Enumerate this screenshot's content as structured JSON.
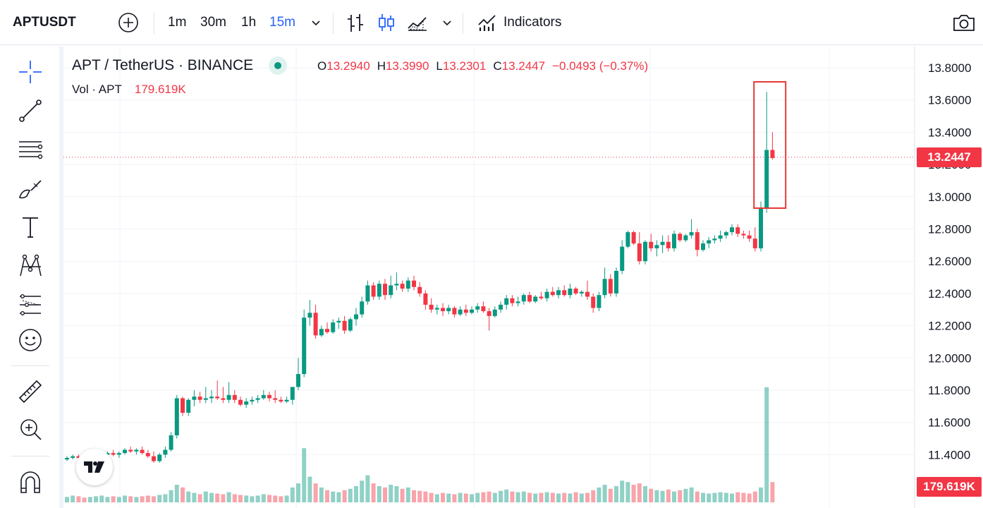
{
  "toolbar": {
    "symbol": "APTUSDT",
    "intervals": [
      "1m",
      "30m",
      "1h",
      "15m"
    ],
    "selected_interval": "15m",
    "indicators_label": "Indicators"
  },
  "legend": {
    "pair": "APT / TetherUS · BINANCE",
    "o_label": "O",
    "o_value": "13.2940",
    "h_label": "H",
    "h_value": "13.3990",
    "l_label": "L",
    "l_value": "13.2301",
    "c_label": "C",
    "c_value": "13.2447",
    "change": "−0.0493 (−0.37%)",
    "vol_label": "Vol · APT",
    "vol_value": "179.619K"
  },
  "price_tag": "13.2447",
  "volume_tag": "179.619K",
  "colors": {
    "up": "#089981",
    "down": "#f23645",
    "accent": "#2962ff",
    "highlight": "#e53935"
  },
  "icons": [
    "plus-circle-icon",
    "chevron-down-icon",
    "bar-chart-icon",
    "candles-icon",
    "area-chart-icon",
    "indicators-icon",
    "camera-icon",
    "crosshair-icon",
    "trendline-icon",
    "fib-icon",
    "brush-icon",
    "text-icon",
    "pattern-icon",
    "forecast-icon",
    "emoji-icon",
    "ruler-icon",
    "zoom-icon",
    "magnet-icon",
    "tradingview-logo-icon"
  ],
  "chart_data": {
    "type": "candlestick",
    "y_ticks": [
      "13.8000",
      "13.6000",
      "13.4000",
      "13.2000",
      "13.0000",
      "12.8000",
      "12.6000",
      "12.4000",
      "12.2000",
      "12.0000",
      "11.8000",
      "11.6000",
      "11.4000"
    ],
    "ylim": [
      11.2,
      13.9
    ],
    "last_price": 13.2447,
    "candles": [
      [
        11.37,
        11.39,
        11.36,
        11.38
      ],
      [
        11.38,
        11.4,
        11.37,
        11.39
      ],
      [
        11.39,
        11.4,
        11.37,
        11.38
      ],
      [
        11.38,
        11.39,
        11.36,
        11.37
      ],
      [
        11.37,
        11.38,
        11.35,
        11.37
      ],
      [
        11.37,
        11.4,
        11.36,
        11.39
      ],
      [
        11.39,
        11.41,
        11.38,
        11.4
      ],
      [
        11.4,
        11.42,
        11.39,
        11.41
      ],
      [
        11.41,
        11.43,
        11.39,
        11.4
      ],
      [
        11.4,
        11.42,
        11.38,
        11.41
      ],
      [
        11.41,
        11.44,
        11.4,
        11.43
      ],
      [
        11.43,
        11.45,
        11.41,
        11.42
      ],
      [
        11.42,
        11.44,
        11.4,
        11.43
      ],
      [
        11.43,
        11.45,
        11.4,
        11.41
      ],
      [
        11.41,
        11.43,
        11.38,
        11.39
      ],
      [
        11.39,
        11.42,
        11.35,
        11.36
      ],
      [
        11.36,
        11.41,
        11.35,
        11.4
      ],
      [
        11.4,
        11.45,
        11.38,
        11.43
      ],
      [
        11.43,
        11.54,
        11.42,
        11.52
      ],
      [
        11.52,
        11.77,
        11.5,
        11.75
      ],
      [
        11.75,
        11.76,
        11.64,
        11.66
      ],
      [
        11.66,
        11.75,
        11.64,
        11.74
      ],
      [
        11.74,
        11.8,
        11.7,
        11.76
      ],
      [
        11.76,
        11.79,
        11.72,
        11.74
      ],
      [
        11.74,
        11.82,
        11.72,
        11.75
      ],
      [
        11.75,
        11.8,
        11.72,
        11.76
      ],
      [
        11.76,
        11.86,
        11.74,
        11.75
      ],
      [
        11.75,
        11.82,
        11.72,
        11.74
      ],
      [
        11.74,
        11.85,
        11.72,
        11.77
      ],
      [
        11.77,
        11.8,
        11.72,
        11.74
      ],
      [
        11.74,
        11.76,
        11.7,
        11.71
      ],
      [
        11.71,
        11.75,
        11.69,
        11.73
      ],
      [
        11.73,
        11.76,
        11.71,
        11.74
      ],
      [
        11.74,
        11.77,
        11.72,
        11.75
      ],
      [
        11.75,
        11.8,
        11.74,
        11.77
      ],
      [
        11.77,
        11.79,
        11.73,
        11.75
      ],
      [
        11.75,
        11.8,
        11.72,
        11.74
      ],
      [
        11.74,
        11.76,
        11.72,
        11.73
      ],
      [
        11.73,
        11.76,
        11.72,
        11.74
      ],
      [
        11.74,
        11.8,
        11.71,
        11.82
      ],
      [
        11.82,
        12.0,
        11.8,
        11.9
      ],
      [
        11.9,
        12.3,
        11.88,
        12.25
      ],
      [
        12.25,
        12.36,
        12.2,
        12.28
      ],
      [
        12.28,
        12.33,
        12.12,
        12.14
      ],
      [
        12.14,
        12.2,
        12.13,
        12.18
      ],
      [
        12.18,
        12.22,
        12.15,
        12.16
      ],
      [
        12.16,
        12.24,
        12.15,
        12.22
      ],
      [
        12.22,
        12.25,
        12.18,
        12.23
      ],
      [
        12.23,
        12.26,
        12.15,
        12.17
      ],
      [
        12.17,
        12.25,
        12.16,
        12.24
      ],
      [
        12.24,
        12.31,
        12.2,
        12.27
      ],
      [
        12.27,
        12.38,
        12.25,
        12.35
      ],
      [
        12.35,
        12.48,
        12.33,
        12.45
      ],
      [
        12.45,
        12.47,
        12.36,
        12.38
      ],
      [
        12.38,
        12.48,
        12.36,
        12.46
      ],
      [
        12.46,
        12.49,
        12.36,
        12.39
      ],
      [
        12.39,
        12.51,
        12.37,
        12.45
      ],
      [
        12.45,
        12.53,
        12.42,
        12.46
      ],
      [
        12.46,
        12.48,
        12.41,
        12.43
      ],
      [
        12.43,
        12.5,
        12.41,
        12.48
      ],
      [
        12.48,
        12.51,
        12.42,
        12.44
      ],
      [
        12.44,
        12.47,
        12.38,
        12.4
      ],
      [
        12.4,
        12.42,
        12.3,
        12.33
      ],
      [
        12.33,
        12.37,
        12.28,
        12.3
      ],
      [
        12.3,
        12.33,
        12.27,
        12.31
      ],
      [
        12.31,
        12.34,
        12.26,
        12.29
      ],
      [
        12.29,
        12.33,
        12.27,
        12.31
      ],
      [
        12.31,
        12.32,
        12.25,
        12.27
      ],
      [
        12.27,
        12.32,
        12.26,
        12.3
      ],
      [
        12.3,
        12.33,
        12.26,
        12.28
      ],
      [
        12.28,
        12.32,
        12.27,
        12.3
      ],
      [
        12.3,
        12.34,
        12.28,
        12.32
      ],
      [
        12.32,
        12.35,
        12.28,
        12.29
      ],
      [
        12.29,
        12.31,
        12.17,
        12.26
      ],
      [
        12.26,
        12.32,
        12.25,
        12.3
      ],
      [
        12.3,
        12.35,
        12.28,
        12.33
      ],
      [
        12.33,
        12.39,
        12.3,
        12.37
      ],
      [
        12.37,
        12.39,
        12.32,
        12.34
      ],
      [
        12.34,
        12.38,
        12.32,
        12.35
      ],
      [
        12.35,
        12.4,
        12.33,
        12.39
      ],
      [
        12.39,
        12.41,
        12.34,
        12.35
      ],
      [
        12.35,
        12.39,
        12.34,
        12.38
      ],
      [
        12.38,
        12.41,
        12.36,
        12.37
      ],
      [
        12.37,
        12.43,
        12.35,
        12.41
      ],
      [
        12.41,
        12.44,
        12.38,
        12.39
      ],
      [
        12.39,
        12.44,
        12.37,
        12.42
      ],
      [
        12.42,
        12.45,
        12.38,
        12.39
      ],
      [
        12.39,
        12.46,
        12.37,
        12.43
      ],
      [
        12.43,
        12.44,
        12.39,
        12.4
      ],
      [
        12.4,
        12.42,
        12.38,
        12.41
      ],
      [
        12.41,
        12.48,
        12.36,
        12.38
      ],
      [
        12.38,
        12.4,
        12.28,
        12.31
      ],
      [
        12.31,
        12.41,
        12.29,
        12.39
      ],
      [
        12.39,
        12.56,
        12.37,
        12.49
      ],
      [
        12.49,
        12.52,
        12.38,
        12.4
      ],
      [
        12.4,
        12.56,
        12.38,
        12.54
      ],
      [
        12.54,
        12.73,
        12.52,
        12.69
      ],
      [
        12.69,
        12.79,
        12.68,
        12.78
      ],
      [
        12.78,
        12.79,
        12.7,
        12.71
      ],
      [
        12.71,
        12.78,
        12.58,
        12.6
      ],
      [
        12.6,
        12.73,
        12.58,
        12.72
      ],
      [
        12.72,
        12.77,
        12.66,
        12.68
      ],
      [
        12.68,
        12.73,
        12.63,
        12.7
      ],
      [
        12.7,
        12.76,
        12.65,
        12.72
      ],
      [
        12.72,
        12.76,
        12.66,
        12.68
      ],
      [
        12.68,
        12.79,
        12.66,
        12.77
      ],
      [
        12.77,
        12.78,
        12.72,
        12.73
      ],
      [
        12.73,
        12.77,
        12.72,
        12.76
      ],
      [
        12.76,
        12.86,
        12.74,
        12.78
      ],
      [
        12.78,
        12.8,
        12.63,
        12.67
      ],
      [
        12.67,
        12.73,
        12.66,
        12.71
      ],
      [
        12.71,
        12.75,
        12.68,
        12.73
      ],
      [
        12.73,
        12.76,
        12.71,
        12.74
      ],
      [
        12.74,
        12.79,
        12.72,
        12.76
      ],
      [
        12.76,
        12.79,
        12.74,
        12.78
      ],
      [
        12.78,
        12.83,
        12.76,
        12.81
      ],
      [
        12.81,
        12.83,
        12.75,
        12.77
      ],
      [
        12.77,
        12.79,
        12.74,
        12.76
      ],
      [
        12.76,
        12.79,
        12.72,
        12.74
      ],
      [
        12.74,
        12.81,
        12.66,
        12.68
      ],
      [
        12.68,
        12.97,
        12.66,
        12.93
      ],
      [
        12.93,
        13.65,
        12.9,
        13.29
      ],
      [
        13.29,
        13.4,
        13.23,
        13.24
      ]
    ],
    "volumes": [
      8,
      10,
      9,
      7,
      8,
      9,
      10,
      8,
      9,
      8,
      10,
      9,
      8,
      9,
      10,
      9,
      11,
      12,
      18,
      26,
      22,
      16,
      14,
      12,
      16,
      14,
      13,
      12,
      15,
      12,
      11,
      10,
      9,
      10,
      12,
      11,
      10,
      9,
      10,
      22,
      28,
      80,
      38,
      28,
      22,
      18,
      16,
      15,
      18,
      20,
      24,
      32,
      40,
      28,
      24,
      22,
      26,
      24,
      20,
      22,
      18,
      17,
      16,
      14,
      12,
      14,
      13,
      12,
      14,
      13,
      12,
      14,
      15,
      16,
      14,
      17,
      19,
      16,
      15,
      16,
      14,
      13,
      14,
      15,
      14,
      13,
      14,
      13,
      15,
      13,
      14,
      18,
      22,
      26,
      20,
      24,
      32,
      30,
      26,
      28,
      24,
      20,
      18,
      17,
      19,
      16,
      18,
      20,
      22,
      16,
      14,
      13,
      14,
      15,
      14,
      13,
      15,
      14,
      13,
      16,
      22,
      170,
      30
    ]
  }
}
